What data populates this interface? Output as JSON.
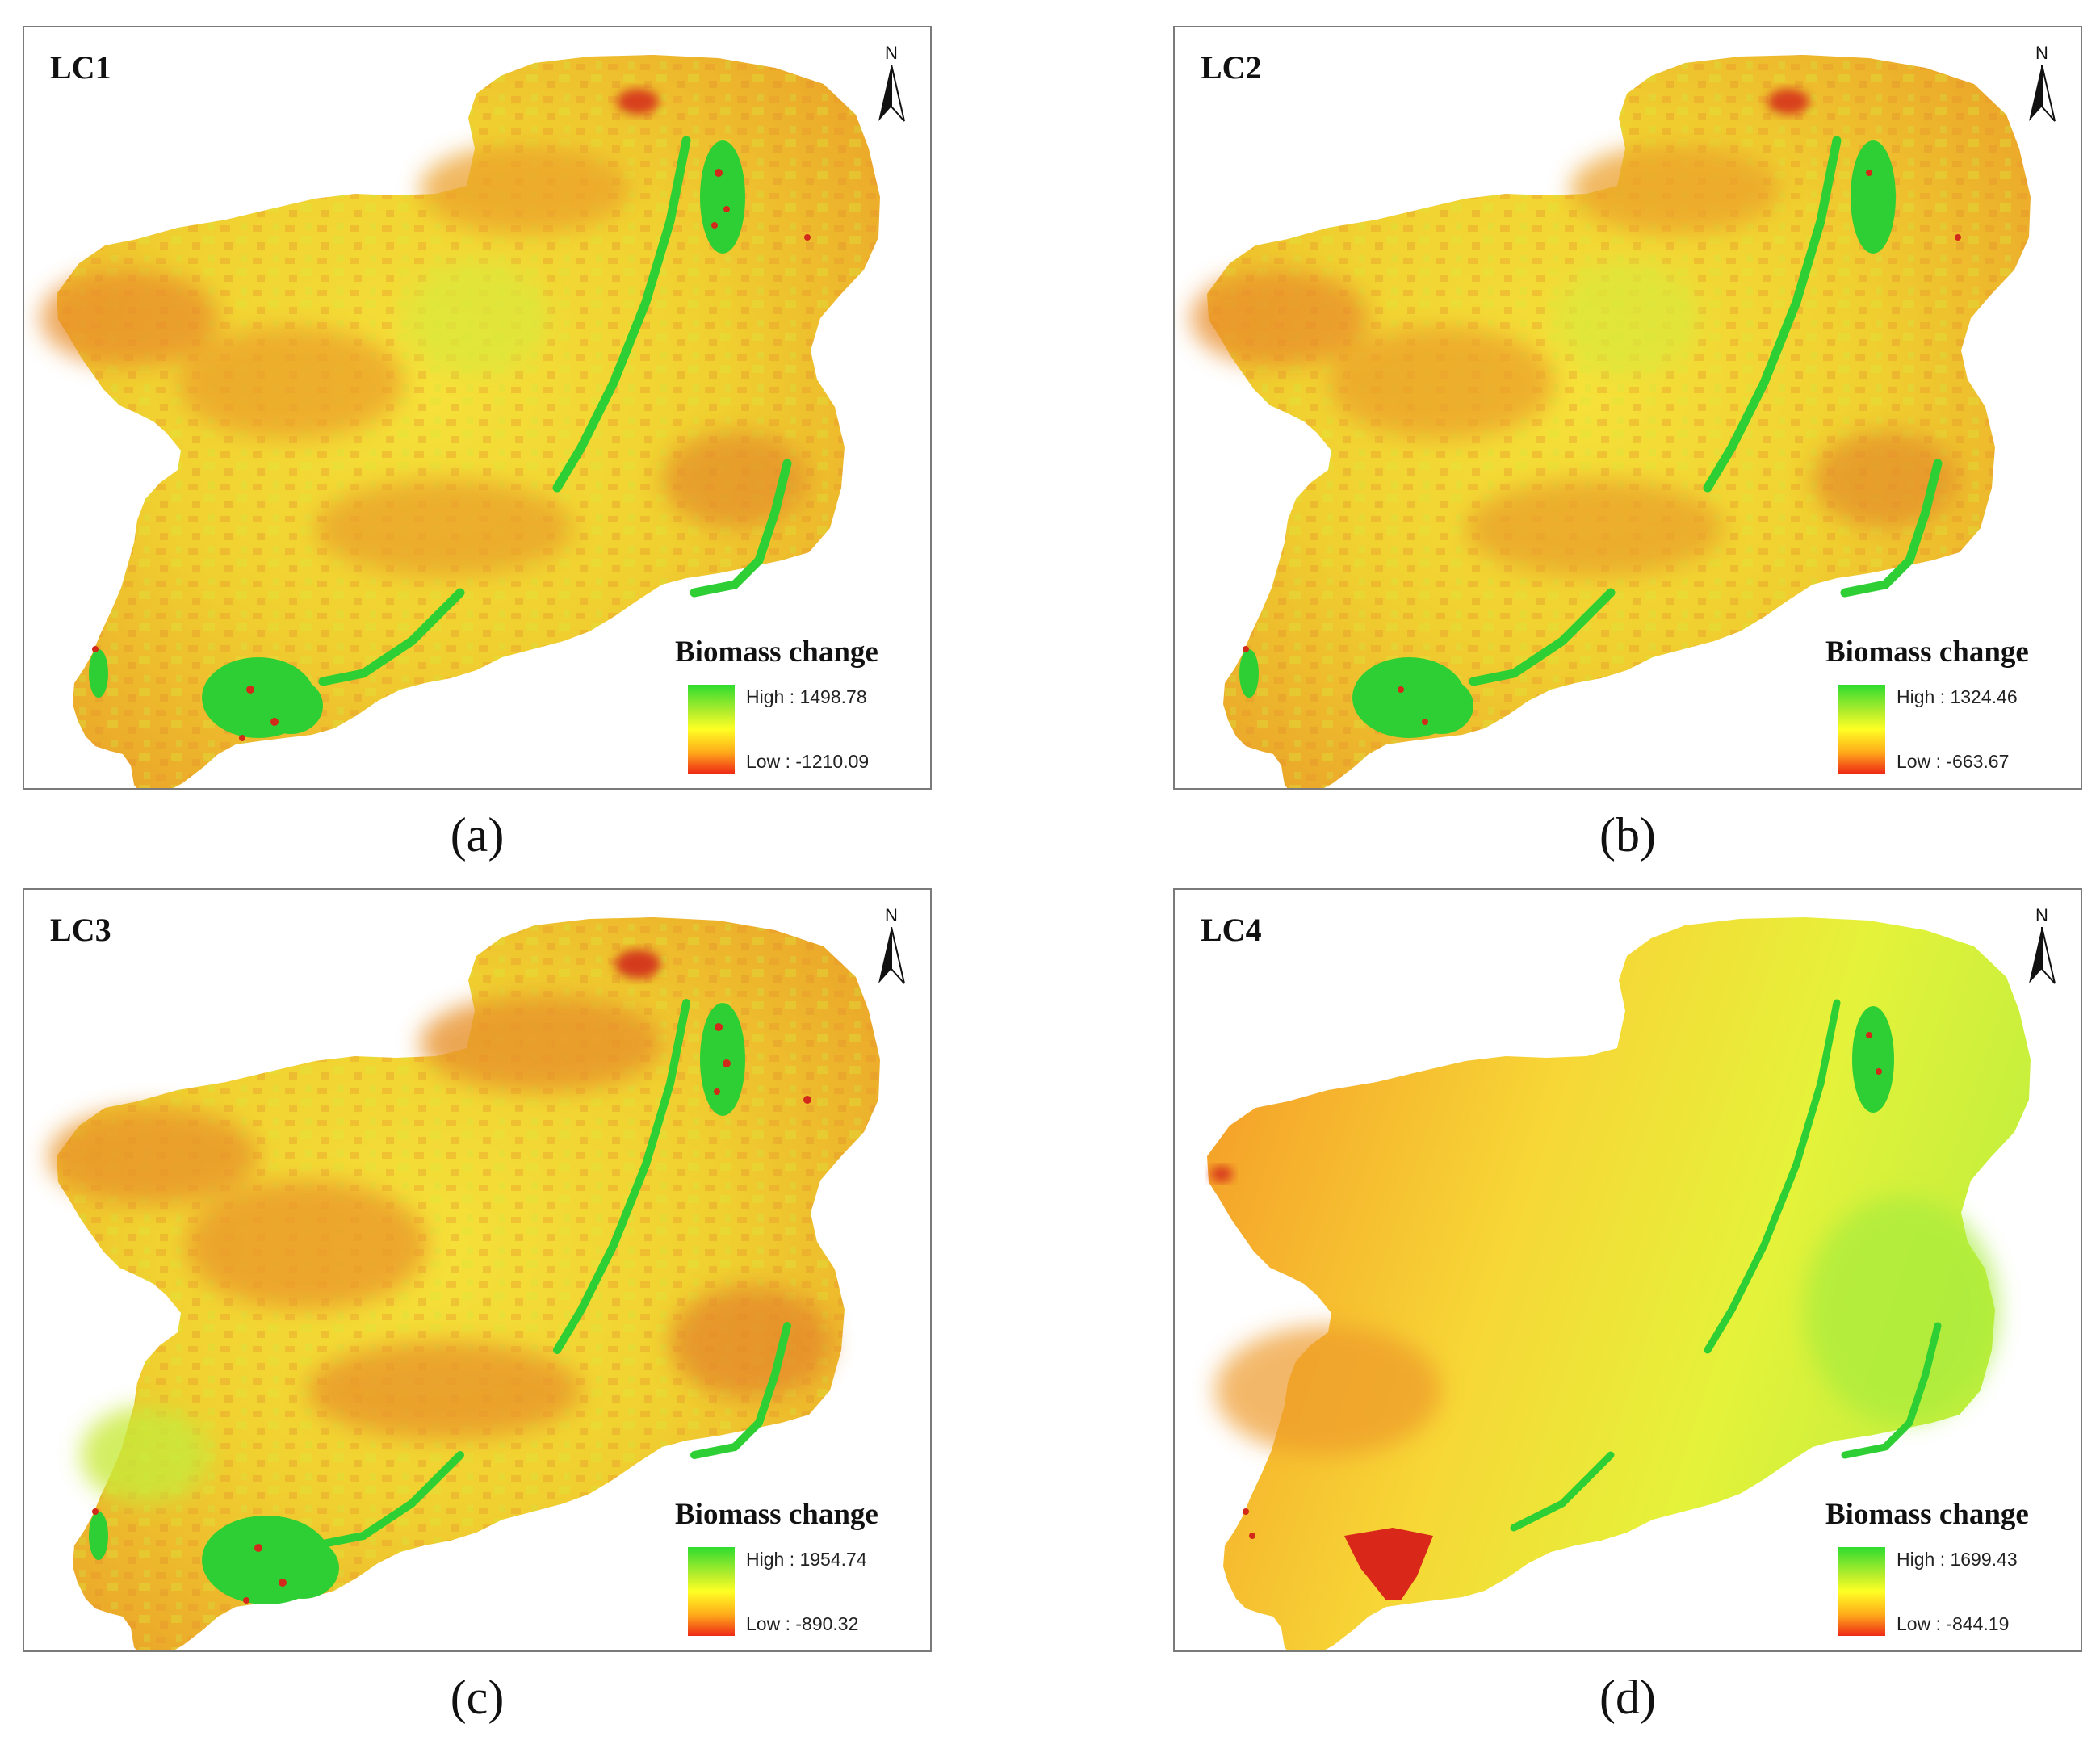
{
  "figure": {
    "panels": [
      {
        "id": "a",
        "label": "LC1",
        "caption": "(a)",
        "north_label": "N",
        "legend": {
          "title": "Biomass change",
          "high": "High : 1498.78",
          "low": "Low : -1210.09",
          "high_value": 1498.78,
          "low_value": -1210.09
        },
        "tone": "mixed-orange-yellow"
      },
      {
        "id": "b",
        "label": "LC2",
        "caption": "(b)",
        "north_label": "N",
        "legend": {
          "title": "Biomass change",
          "high": "High : 1324.46",
          "low": "Low : -663.67",
          "high_value": 1324.46,
          "low_value": -663.67
        },
        "tone": "mixed-orange-yellow"
      },
      {
        "id": "c",
        "label": "LC3",
        "caption": "(c)",
        "north_label": "N",
        "legend": {
          "title": "Biomass change",
          "high": "High : 1954.74",
          "low": "Low : -890.32",
          "high_value": 1954.74,
          "low_value": -890.32
        },
        "tone": "mixed-orange-yellow"
      },
      {
        "id": "d",
        "label": "LC4",
        "caption": "(d)",
        "north_label": "N",
        "legend": {
          "title": "Biomass change",
          "high": "High : 1699.43",
          "low": "Low : -844.19",
          "high_value": 1699.43,
          "low_value": -844.19
        },
        "tone": "smooth-gradient"
      }
    ],
    "colors": {
      "high": "#2fdc2f",
      "mid": "#ffff24",
      "low": "#ee2a16",
      "frame": "#7a7a7a"
    }
  }
}
